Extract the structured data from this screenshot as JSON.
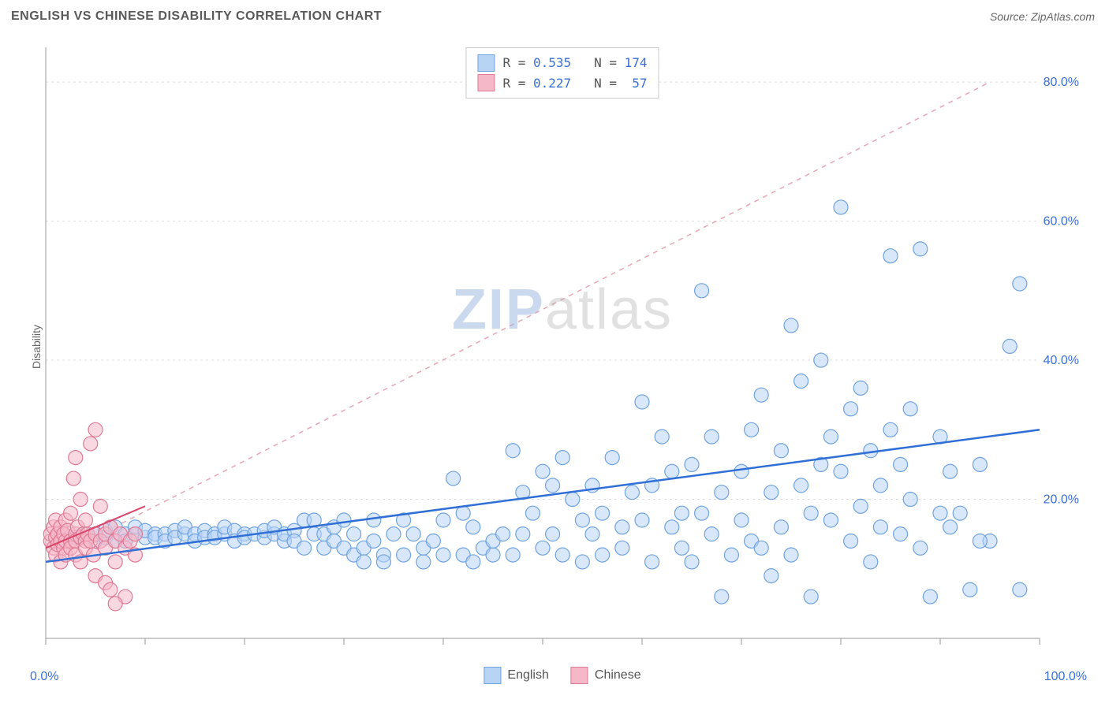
{
  "title": "ENGLISH VS CHINESE DISABILITY CORRELATION CHART",
  "source": "Source: ZipAtlas.com",
  "ylabel": "Disability",
  "watermark_a": "ZIP",
  "watermark_b": "atlas",
  "chart": {
    "type": "scatter",
    "xlim": [
      0,
      100
    ],
    "ylim": [
      0,
      85
    ],
    "xtick_positions": [
      0,
      10,
      20,
      30,
      40,
      50,
      60,
      70,
      80,
      90,
      100
    ],
    "ytick_positions": [
      0,
      20,
      40,
      60,
      80
    ],
    "ytick_labels": [
      "",
      "20.0%",
      "40.0%",
      "60.0%",
      "80.0%"
    ],
    "x_axis_min_label": "0.0%",
    "x_axis_max_label": "100.0%",
    "grid_color": "#dddddd",
    "axis_color": "#999999",
    "background_color": "#ffffff",
    "marker_radius": 9,
    "marker_stroke_width": 1.2,
    "series": {
      "english": {
        "label": "English",
        "fill": "#b8d4f5",
        "stroke": "#6fa3e0",
        "fill_opacity": 0.55,
        "R": "0.535",
        "N": "174",
        "trend": {
          "x1": 0,
          "y1": 11,
          "x2": 100,
          "y2": 30,
          "color": "#2f6fd6",
          "dash": "none",
          "width": 2.5
        },
        "trend_ext": {
          "x1": 0,
          "y1": 11,
          "x2": 95,
          "y2": 80,
          "color": "#e9a5b4",
          "dash": "6,6",
          "width": 1.5
        },
        "points": [
          [
            2,
            14
          ],
          [
            3,
            14.5
          ],
          [
            4,
            15
          ],
          [
            5,
            14
          ],
          [
            5,
            15
          ],
          [
            6,
            14.5
          ],
          [
            6,
            15.5
          ],
          [
            7,
            14
          ],
          [
            7,
            16
          ],
          [
            8,
            15
          ],
          [
            8,
            14
          ],
          [
            9,
            15
          ],
          [
            9,
            16
          ],
          [
            10,
            14.5
          ],
          [
            10,
            15.5
          ],
          [
            11,
            15
          ],
          [
            11,
            14.5
          ],
          [
            12,
            15
          ],
          [
            12,
            14
          ],
          [
            13,
            15.5
          ],
          [
            13,
            14.5
          ],
          [
            14,
            15
          ],
          [
            14,
            16
          ],
          [
            15,
            15
          ],
          [
            15,
            14
          ],
          [
            16,
            15.5
          ],
          [
            16,
            14.5
          ],
          [
            17,
            15
          ],
          [
            17,
            14.5
          ],
          [
            18,
            15
          ],
          [
            18,
            16
          ],
          [
            19,
            15.5
          ],
          [
            19,
            14
          ],
          [
            20,
            15
          ],
          [
            20,
            14.5
          ],
          [
            21,
            15
          ],
          [
            22,
            14.5
          ],
          [
            22,
            15.5
          ],
          [
            23,
            15
          ],
          [
            23,
            16
          ],
          [
            24,
            14
          ],
          [
            24,
            15
          ],
          [
            25,
            15.5
          ],
          [
            25,
            14
          ],
          [
            26,
            13
          ],
          [
            26,
            17
          ],
          [
            27,
            15
          ],
          [
            27,
            17
          ],
          [
            28,
            13
          ],
          [
            28,
            15
          ],
          [
            29,
            16
          ],
          [
            29,
            14
          ],
          [
            30,
            13
          ],
          [
            30,
            17
          ],
          [
            31,
            15
          ],
          [
            31,
            12
          ],
          [
            32,
            13
          ],
          [
            32,
            11
          ],
          [
            33,
            17
          ],
          [
            33,
            14
          ],
          [
            34,
            12
          ],
          [
            34,
            11
          ],
          [
            35,
            15
          ],
          [
            36,
            12
          ],
          [
            36,
            17
          ],
          [
            37,
            15
          ],
          [
            38,
            11
          ],
          [
            38,
            13
          ],
          [
            39,
            14
          ],
          [
            40,
            12
          ],
          [
            40,
            17
          ],
          [
            41,
            23
          ],
          [
            42,
            18
          ],
          [
            42,
            12
          ],
          [
            43,
            16
          ],
          [
            43,
            11
          ],
          [
            44,
            13
          ],
          [
            45,
            12
          ],
          [
            45,
            14
          ],
          [
            46,
            15
          ],
          [
            47,
            27
          ],
          [
            47,
            12
          ],
          [
            48,
            21
          ],
          [
            48,
            15
          ],
          [
            49,
            18
          ],
          [
            50,
            24
          ],
          [
            50,
            13
          ],
          [
            51,
            22
          ],
          [
            51,
            15
          ],
          [
            52,
            26
          ],
          [
            52,
            12
          ],
          [
            53,
            20
          ],
          [
            54,
            17
          ],
          [
            54,
            11
          ],
          [
            55,
            22
          ],
          [
            55,
            15
          ],
          [
            56,
            12
          ],
          [
            56,
            18
          ],
          [
            57,
            26
          ],
          [
            58,
            16
          ],
          [
            58,
            13
          ],
          [
            59,
            21
          ],
          [
            60,
            34
          ],
          [
            60,
            17
          ],
          [
            61,
            11
          ],
          [
            61,
            22
          ],
          [
            62,
            29
          ],
          [
            63,
            16
          ],
          [
            63,
            24
          ],
          [
            64,
            18
          ],
          [
            64,
            13
          ],
          [
            65,
            11
          ],
          [
            65,
            25
          ],
          [
            66,
            50
          ],
          [
            66,
            18
          ],
          [
            67,
            29
          ],
          [
            67,
            15
          ],
          [
            68,
            6
          ],
          [
            68,
            21
          ],
          [
            69,
            12
          ],
          [
            70,
            24
          ],
          [
            70,
            17
          ],
          [
            71,
            30
          ],
          [
            71,
            14
          ],
          [
            72,
            13
          ],
          [
            72,
            35
          ],
          [
            73,
            21
          ],
          [
            73,
            9
          ],
          [
            74,
            16
          ],
          [
            74,
            27
          ],
          [
            75,
            12
          ],
          [
            75,
            45
          ],
          [
            76,
            22
          ],
          [
            76,
            37
          ],
          [
            77,
            18
          ],
          [
            77,
            6
          ],
          [
            78,
            25
          ],
          [
            78,
            40
          ],
          [
            79,
            17
          ],
          [
            79,
            29
          ],
          [
            80,
            62
          ],
          [
            80,
            24
          ],
          [
            81,
            33
          ],
          [
            81,
            14
          ],
          [
            82,
            36
          ],
          [
            82,
            19
          ],
          [
            83,
            11
          ],
          [
            83,
            27
          ],
          [
            84,
            22
          ],
          [
            84,
            16
          ],
          [
            85,
            55
          ],
          [
            85,
            30
          ],
          [
            86,
            25
          ],
          [
            86,
            15
          ],
          [
            87,
            33
          ],
          [
            87,
            20
          ],
          [
            88,
            56
          ],
          [
            88,
            13
          ],
          [
            89,
            6
          ],
          [
            90,
            18
          ],
          [
            90,
            29
          ],
          [
            91,
            24
          ],
          [
            91,
            16
          ],
          [
            92,
            18
          ],
          [
            93,
            7
          ],
          [
            94,
            25
          ],
          [
            95,
            14
          ],
          [
            97,
            42
          ],
          [
            98,
            51
          ],
          [
            98,
            7
          ],
          [
            94,
            14
          ]
        ]
      },
      "chinese": {
        "label": "Chinese",
        "fill": "#f5b8c8",
        "stroke": "#e07a95",
        "fill_opacity": 0.55,
        "R": "0.227",
        "N": "57",
        "trend": {
          "x1": 0,
          "y1": 13,
          "x2": 10,
          "y2": 19,
          "color": "#d8456a",
          "dash": "none",
          "width": 2
        },
        "points": [
          [
            0.5,
            14
          ],
          [
            0.5,
            15
          ],
          [
            0.8,
            13
          ],
          [
            0.8,
            16
          ],
          [
            1,
            14.5
          ],
          [
            1,
            12
          ],
          [
            1,
            17
          ],
          [
            1.2,
            15
          ],
          [
            1.2,
            13.5
          ],
          [
            1.5,
            14
          ],
          [
            1.5,
            16
          ],
          [
            1.5,
            11
          ],
          [
            1.8,
            15
          ],
          [
            1.8,
            13
          ],
          [
            2,
            14
          ],
          [
            2,
            17
          ],
          [
            2,
            12
          ],
          [
            2.2,
            15.5
          ],
          [
            2.5,
            14
          ],
          [
            2.5,
            13
          ],
          [
            2.5,
            18
          ],
          [
            2.8,
            23
          ],
          [
            3,
            15
          ],
          [
            3,
            14
          ],
          [
            3,
            12
          ],
          [
            3,
            26
          ],
          [
            3.2,
            16
          ],
          [
            3.5,
            14.5
          ],
          [
            3.5,
            11
          ],
          [
            3.5,
            20
          ],
          [
            3.8,
            15
          ],
          [
            4,
            14
          ],
          [
            4,
            13
          ],
          [
            4,
            17
          ],
          [
            4.2,
            15
          ],
          [
            4.5,
            28
          ],
          [
            4.5,
            14
          ],
          [
            4.8,
            12
          ],
          [
            5,
            30
          ],
          [
            5,
            15
          ],
          [
            5,
            9
          ],
          [
            5.5,
            14
          ],
          [
            5.5,
            19
          ],
          [
            6,
            8
          ],
          [
            6,
            15
          ],
          [
            6,
            13
          ],
          [
            6.5,
            7
          ],
          [
            6.5,
            16
          ],
          [
            7,
            14
          ],
          [
            7,
            11
          ],
          [
            7.5,
            15
          ],
          [
            8,
            6
          ],
          [
            8,
            13
          ],
          [
            8.5,
            14
          ],
          [
            9,
            12
          ],
          [
            9,
            15
          ],
          [
            7,
            5
          ]
        ]
      }
    }
  },
  "legend_top": [
    {
      "swatch_fill": "#b8d4f5",
      "swatch_stroke": "#6fa3e0",
      "R": "0.535",
      "N": "174"
    },
    {
      "swatch_fill": "#f5b8c8",
      "swatch_stroke": "#e07a95",
      "R": "0.227",
      "N": "57"
    }
  ],
  "legend_bottom": [
    {
      "swatch_fill": "#b8d4f5",
      "swatch_stroke": "#6fa3e0",
      "label": "English"
    },
    {
      "swatch_fill": "#f5b8c8",
      "swatch_stroke": "#e07a95",
      "label": "Chinese"
    }
  ]
}
